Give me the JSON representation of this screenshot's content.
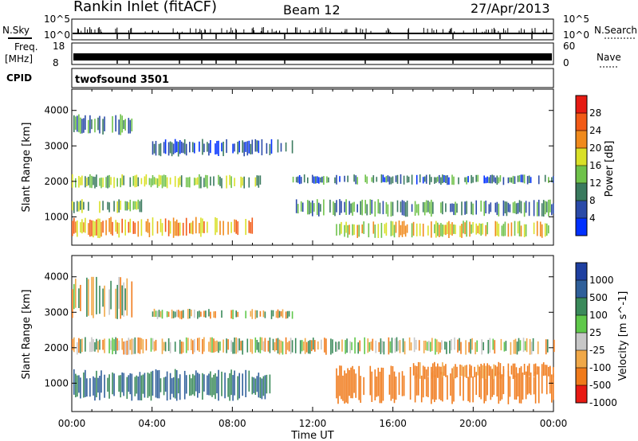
{
  "header": {
    "radar": "Rankin Inlet (fitACF)",
    "beam": "Beam 12",
    "date": "27/Apr/2013"
  },
  "strips": {
    "nsky_label": "N.Sky",
    "nsky_top": "10^5",
    "nsky_bottom": "10^0",
    "nsearch_label": "N.Search",
    "nsearch_top": "10^5",
    "nsearch_bottom": "10^0",
    "freq_label": "Freq.",
    "freq_unit": "[MHz]",
    "freq_top": "18",
    "freq_bottom": "8",
    "nave_label": "Nave",
    "nave_top": "60",
    "nave_bottom": "0",
    "cpid_label": "CPID",
    "cpid_value": "twofsound 3501"
  },
  "chart_data": [
    {
      "type": "heatmap",
      "title": "",
      "ylabel": "Slant Range [km]",
      "xlabel": "",
      "ylim": [
        200,
        4600
      ],
      "yticks": [
        1000,
        2000,
        3000,
        4000
      ],
      "xlim": [
        "00:00",
        "24:00"
      ],
      "colorbar": {
        "label": "Power [dB]",
        "ticks": [
          4,
          8,
          12,
          16,
          20,
          24,
          28
        ],
        "colors": [
          "#0030ff",
          "#2a4aa8",
          "#3a7a5e",
          "#6fc24a",
          "#d9e027",
          "#f08a1c",
          "#f25a16",
          "#e61b13"
        ]
      },
      "bands": [
        {
          "km_from": 400,
          "km_to": 1000,
          "t_from": 0.0,
          "t_to": 9.0,
          "level_db": 22
        },
        {
          "km_from": 1100,
          "km_to": 1500,
          "t_from": 0.0,
          "t_to": 3.5,
          "level_db": 14
        },
        {
          "km_from": 1800,
          "km_to": 2200,
          "t_from": 0.0,
          "t_to": 9.5,
          "level_db": 14
        },
        {
          "km_from": 3300,
          "km_to": 3900,
          "t_from": 0.0,
          "t_to": 3.0,
          "level_db": 10
        },
        {
          "km_from": 2700,
          "km_to": 3200,
          "t_from": 4.0,
          "t_to": 11.0,
          "level_db": 6
        },
        {
          "km_from": 400,
          "km_to": 900,
          "t_from": 13.0,
          "t_to": 24.0,
          "level_db": 18
        },
        {
          "km_from": 1000,
          "km_to": 1500,
          "t_from": 11.0,
          "t_to": 24.0,
          "level_db": 10
        },
        {
          "km_from": 1900,
          "km_to": 2200,
          "t_from": 11.0,
          "t_to": 24.0,
          "level_db": 8
        }
      ]
    },
    {
      "type": "heatmap",
      "title": "",
      "ylabel": "Slant Range [km]",
      "xlabel": "Time UT",
      "ylim": [
        200,
        4600
      ],
      "yticks": [
        1000,
        2000,
        3000,
        4000
      ],
      "xticks": [
        "00:00",
        "04:00",
        "08:00",
        "12:00",
        "16:00",
        "20:00",
        "00:00"
      ],
      "colorbar": {
        "label": "Velocity [m s^-1]",
        "ticks": [
          1000,
          500,
          100,
          25,
          -25,
          -100,
          -500,
          -1000
        ],
        "colors": [
          "#1e3fa0",
          "#2f5f9a",
          "#3a8a5a",
          "#5fc84a",
          "#c7c7c7",
          "#f0a848",
          "#f07a1a",
          "#e81a13"
        ]
      },
      "bands": [
        {
          "km_from": 500,
          "km_to": 1400,
          "t_from": 0.0,
          "t_to": 10.0,
          "velocity": 300
        },
        {
          "km_from": 1800,
          "km_to": 2300,
          "t_from": 0.0,
          "t_to": 24.0,
          "velocity": 0
        },
        {
          "km_from": 2800,
          "km_to": 4000,
          "t_from": 0.0,
          "t_to": 3.0,
          "velocity": 0
        },
        {
          "km_from": 2800,
          "km_to": 3100,
          "t_from": 4.0,
          "t_to": 11.0,
          "velocity": 0
        },
        {
          "km_from": 400,
          "km_to": 1500,
          "t_from": 13.0,
          "t_to": 24.0,
          "velocity": -400
        },
        {
          "km_from": 1100,
          "km_to": 1600,
          "t_from": 17.0,
          "t_to": 24.0,
          "velocity": -200
        }
      ]
    }
  ]
}
